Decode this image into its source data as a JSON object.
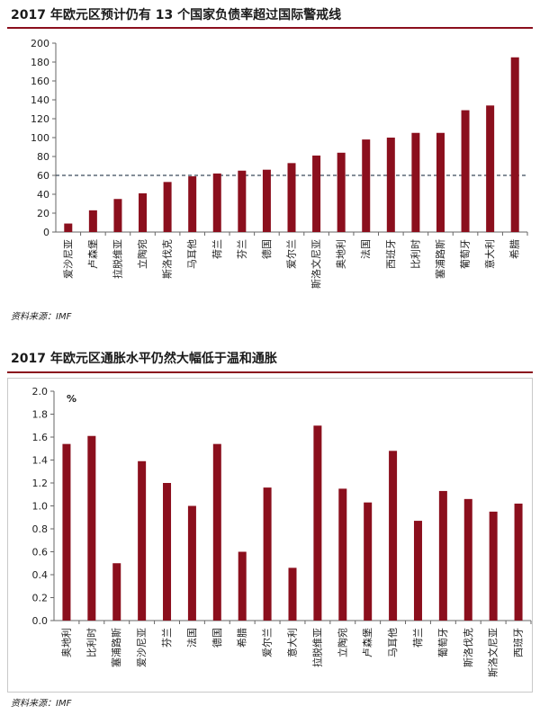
{
  "chart_data": [
    {
      "type": "bar",
      "title": "2017 年欧元区预计仍有 13 个国家负债率超过国际警戒线",
      "source": "资料来源：IMF",
      "categories": [
        "爱沙尼亚",
        "卢森堡",
        "拉脱维亚",
        "立陶宛",
        "斯洛伐克",
        "马耳他",
        "荷兰",
        "芬兰",
        "德国",
        "爱尔兰",
        "斯洛文尼亚",
        "奥地利",
        "法国",
        "西班牙",
        "比利时",
        "塞浦路斯",
        "葡萄牙",
        "意大利",
        "希腊"
      ],
      "values": [
        9,
        23,
        35,
        41,
        53,
        59,
        62,
        65,
        66,
        73,
        81,
        84,
        98,
        100,
        105,
        105,
        129,
        134,
        185
      ],
      "ylim": [
        0,
        200
      ],
      "yticks": [
        "0",
        "20",
        "40",
        "60",
        "80",
        "100",
        "120",
        "140",
        "160",
        "180",
        "200"
      ],
      "reference_line": 60,
      "bar_color": "#8b0f1d"
    },
    {
      "type": "bar",
      "title": "2017 年欧元区通胀水平仍然大幅低于温和通胀",
      "source": "资料来源：IMF",
      "unit_label": "%",
      "categories": [
        "奥地利",
        "比利时",
        "塞浦路斯",
        "爱沙尼亚",
        "芬兰",
        "法国",
        "德国",
        "希腊",
        "爱尔兰",
        "意大利",
        "拉脱维亚",
        "立陶宛",
        "卢森堡",
        "马耳他",
        "荷兰",
        "葡萄牙",
        "斯洛伐克",
        "斯洛文尼亚",
        "西班牙"
      ],
      "values": [
        1.54,
        1.61,
        0.5,
        1.39,
        1.2,
        1.0,
        1.54,
        0.6,
        1.16,
        0.46,
        1.7,
        1.15,
        1.03,
        1.48,
        0.87,
        1.13,
        1.06,
        0.95,
        1.02
      ],
      "ylim": [
        0,
        2.0
      ],
      "yticks": [
        "0.0",
        "0.2",
        "0.4",
        "0.6",
        "0.8",
        "1.0",
        "1.2",
        "1.4",
        "1.6",
        "1.8",
        "2.0"
      ],
      "bar_color": "#8b0f1d"
    }
  ]
}
